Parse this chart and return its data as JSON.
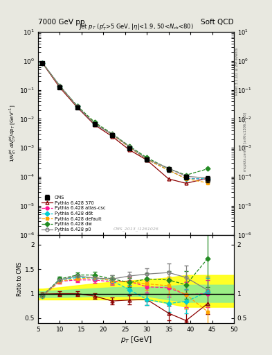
{
  "title_left": "7000 GeV pp",
  "title_right": "Soft QCD",
  "panel_title": "Jet $p_T$ ($p_T^l$>5 GeV, $|\\eta|$<1.9, 50<$N_{ch}$<80)",
  "xlabel": "$p_T$ [GeV]",
  "ylabel_main": "$1/N_{ch}^{jet}$ $dN_{ch}^{jet}/dp_T$ [GeV$^{-1}$]",
  "ylabel_ratio": "Ratio to CMS",
  "watermark": "CMS_2013_I1261026",
  "rivet_label": "Rivet 3.1.10, ≥ 2M events",
  "mcplots_label": "mcplots.cern.ch [arXiv:1306.3436]",
  "pt_vals": [
    6,
    10,
    14,
    18,
    22,
    26,
    30,
    35,
    39,
    44
  ],
  "cms_y": [
    0.85,
    0.12,
    0.025,
    0.0065,
    0.0027,
    0.00095,
    0.0004,
    0.00018,
    0.0001,
    8.5e-05
  ],
  "cms_yerr": [
    0.05,
    0.01,
    0.002,
    0.0005,
    0.00025,
    0.0001,
    5e-05,
    3e-05,
    2e-05,
    2e-05
  ],
  "p370_y": [
    0.84,
    0.12,
    0.025,
    0.0062,
    0.0025,
    0.00085,
    0.00038,
    8.5e-05,
    6e-05,
    9e-05
  ],
  "atlas_y": [
    0.85,
    0.13,
    0.027,
    0.0068,
    0.0029,
    0.00105,
    0.0004,
    0.00017,
    9e-05,
    8.2e-05
  ],
  "d6t_y": [
    0.85,
    0.133,
    0.027,
    0.0068,
    0.0029,
    0.00105,
    0.0004,
    0.00017,
    8.6e-05,
    8.6e-05
  ],
  "default_y": [
    0.85,
    0.133,
    0.027,
    0.0072,
    0.0029,
    0.00105,
    0.0004,
    0.00017,
    8.6e-05,
    6.2e-05
  ],
  "dw_y": [
    0.86,
    0.138,
    0.028,
    0.0077,
    0.0031,
    0.00115,
    0.00046,
    0.00019,
    0.000115,
    0.00019
  ],
  "p0_y": [
    0.86,
    0.138,
    0.027,
    0.0068,
    0.003,
    0.0011,
    0.00041,
    0.0002,
    0.000105,
    9.1e-05
  ],
  "p370_ratio": [
    0.99,
    1.0,
    1.0,
    0.95,
    0.85,
    0.87,
    0.88,
    0.6,
    0.45,
    0.8
  ],
  "atlas_ratio": [
    0.95,
    1.25,
    1.28,
    1.28,
    1.24,
    1.25,
    1.14,
    1.12,
    0.98,
    1.0
  ],
  "d6t_ratio": [
    0.95,
    1.28,
    1.33,
    1.32,
    1.26,
    1.08,
    0.88,
    0.8,
    0.84,
    1.04
  ],
  "default_ratio": [
    0.95,
    1.26,
    1.3,
    1.33,
    1.26,
    1.24,
    1.2,
    1.16,
    0.98,
    0.63
  ],
  "dw_ratio": [
    0.96,
    1.3,
    1.38,
    1.38,
    1.3,
    1.23,
    1.3,
    1.28,
    1.18,
    1.72
  ],
  "p0_ratio": [
    0.96,
    1.28,
    1.36,
    1.32,
    1.3,
    1.36,
    1.4,
    1.43,
    1.33,
    1.07
  ],
  "ratio_yerr_p370": [
    0.03,
    0.05,
    0.05,
    0.06,
    0.07,
    0.09,
    0.12,
    0.15,
    0.25,
    0.22
  ],
  "ratio_yerr_atlas": [
    0.03,
    0.05,
    0.05,
    0.06,
    0.07,
    0.09,
    0.12,
    0.18,
    0.25,
    0.28
  ],
  "ratio_yerr_d6t": [
    0.03,
    0.05,
    0.05,
    0.06,
    0.07,
    0.09,
    0.12,
    0.18,
    0.25,
    0.28
  ],
  "ratio_yerr_default": [
    0.03,
    0.05,
    0.05,
    0.06,
    0.07,
    0.09,
    0.12,
    0.18,
    0.28,
    0.38
  ],
  "ratio_yerr_dw": [
    0.03,
    0.05,
    0.05,
    0.06,
    0.07,
    0.09,
    0.12,
    0.18,
    0.28,
    0.58
  ],
  "ratio_yerr_p0": [
    0.03,
    0.05,
    0.05,
    0.06,
    0.07,
    0.09,
    0.12,
    0.18,
    0.25,
    0.28
  ],
  "band_x": [
    5,
    6,
    10,
    14,
    18,
    22,
    26,
    30,
    35,
    39,
    44,
    50
  ],
  "band_green_low": [
    0.93,
    0.93,
    0.93,
    0.94,
    0.95,
    0.95,
    0.95,
    0.95,
    0.88,
    0.83,
    0.83,
    0.83
  ],
  "band_green_high": [
    1.05,
    1.05,
    1.07,
    1.09,
    1.11,
    1.13,
    1.13,
    1.13,
    1.16,
    1.18,
    1.18,
    1.18
  ],
  "band_yellow_low": [
    0.88,
    0.88,
    0.88,
    0.88,
    0.88,
    0.88,
    0.88,
    0.88,
    0.8,
    0.73,
    0.73,
    0.73
  ],
  "band_yellow_high": [
    1.1,
    1.1,
    1.13,
    1.17,
    1.21,
    1.24,
    1.27,
    1.29,
    1.33,
    1.38,
    1.38,
    1.38
  ],
  "color_cms": "#000000",
  "color_p370": "#8B0000",
  "color_atlas": "#FF1493",
  "color_d6t": "#00CED1",
  "color_default": "#FFA500",
  "color_dw": "#228B22",
  "color_p0": "#808080",
  "bg_color": "#e8e8e0",
  "plot_bg": "#ffffff",
  "xlim": [
    5,
    50
  ],
  "ylim_main": [
    1e-06,
    10
  ],
  "ylim_ratio": [
    0.4,
    2.2
  ]
}
